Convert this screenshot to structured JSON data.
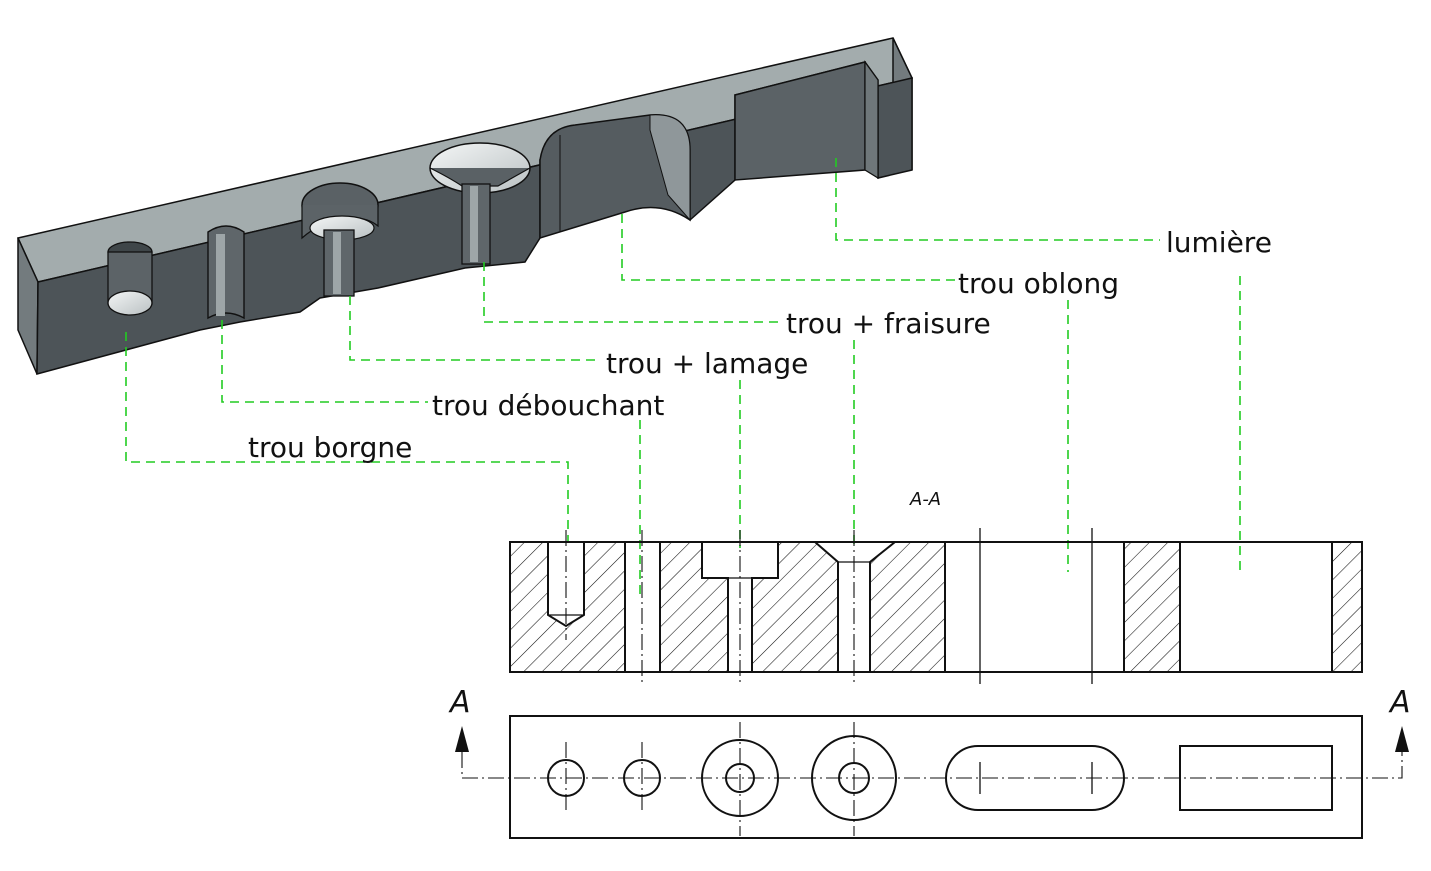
{
  "labels": {
    "lumiere": "lumière",
    "trou_oblong": "trou oblong",
    "trou_fraisure": "trou + fraisure",
    "trou_lamage": "trou + lamage",
    "trou_debouchant": "trou débouchant",
    "trou_borgne": "trou borgne"
  },
  "section": {
    "title": "A-A",
    "arrow_left": "A",
    "arrow_right": "A"
  },
  "colors": {
    "leader": "#22cc22",
    "part_top_face": "#a3acad",
    "part_front_face": "#4d5458",
    "part_side_face": "#737b7e",
    "line": "#111111"
  }
}
